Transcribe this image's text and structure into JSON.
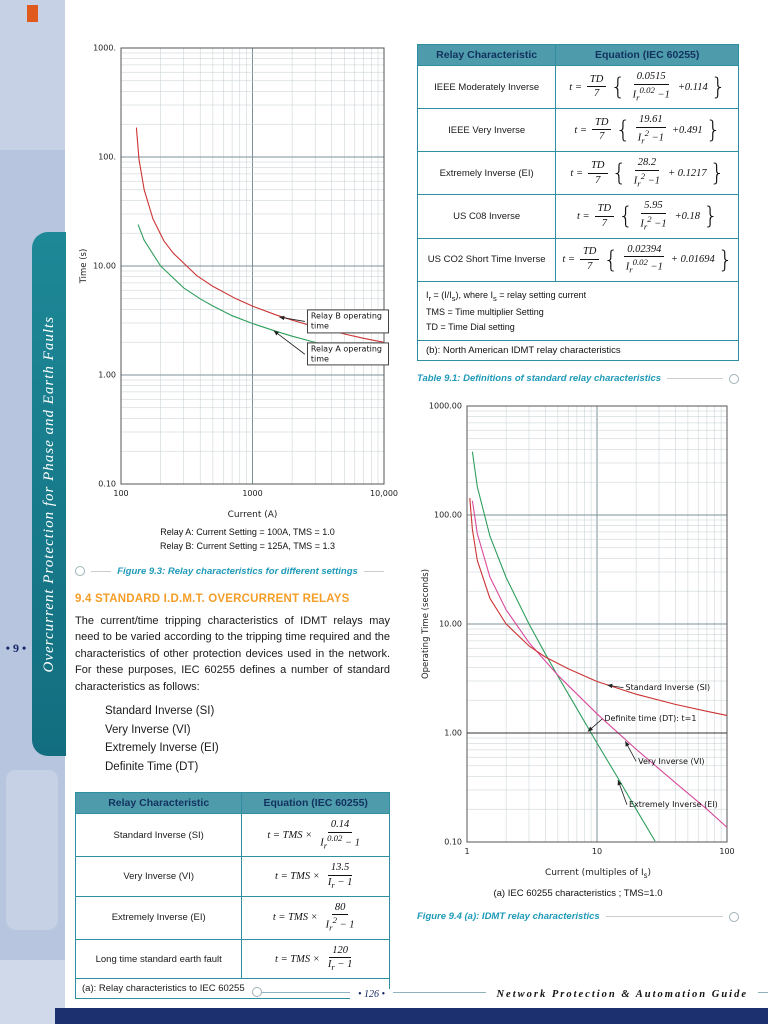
{
  "sidebar": {
    "chapter_title": "Overcurrent Protection for Phase and Earth Faults",
    "chapter_number": "• 9 •"
  },
  "section": {
    "heading": "9.4 STANDARD I.D.M.T. OVERCURRENT RELAYS",
    "paragraph": "The current/time tripping characteristics of IDMT relays may need to be varied according to the tripping time required and the characteristics of other protection devices used in the network. For these purposes, IEC 60255 defines a number of standard characteristics as follows:",
    "list": [
      "Standard Inverse (SI)",
      "Very Inverse (VI)",
      "Extremely Inverse (EI)",
      "Definite Time (DT)"
    ]
  },
  "iec_table": {
    "headers": [
      "Relay Characteristic",
      "Equation (IEC 60255)"
    ],
    "rows": [
      {
        "label": "Standard Inverse (SI)",
        "eq": [
          {
            "t": "txt",
            "v": "t = TMS ×"
          },
          {
            "t": "frac",
            "num": "0.14",
            "den": "I~r~^0.02^ − 1"
          }
        ]
      },
      {
        "label": "Very Inverse (VI)",
        "eq": [
          {
            "t": "txt",
            "v": "t = TMS ×"
          },
          {
            "t": "frac",
            "num": "13.5",
            "den": "I~r~ − 1"
          }
        ]
      },
      {
        "label": "Extremely Inverse (EI)",
        "eq": [
          {
            "t": "txt",
            "v": "t = TMS ×"
          },
          {
            "t": "frac",
            "num": "80",
            "den": "I~r~^2^ − 1"
          }
        ]
      },
      {
        "label": "Long time standard earth fault",
        "eq": [
          {
            "t": "txt",
            "v": "t = TMS ×"
          },
          {
            "t": "frac",
            "num": "120",
            "den": "I~r~ − 1"
          }
        ]
      }
    ],
    "footer": "(a): Relay characteristics to IEC 60255"
  },
  "na_table": {
    "headers": [
      "Relay Characteristic",
      "Equation (IEC 60255)"
    ],
    "rows": [
      {
        "label": "IEEE Moderately Inverse",
        "eq": [
          {
            "t": "txt",
            "v": "t ="
          },
          {
            "t": "frac",
            "num": "TD",
            "den": "7"
          },
          {
            "t": "brace",
            "v": "{"
          },
          {
            "t": "frac",
            "num": "0.0515",
            "den": "I~r~^0.02^ −1"
          },
          {
            "t": "txt",
            "v": "+0.114"
          },
          {
            "t": "brace",
            "v": "}"
          }
        ]
      },
      {
        "label": "IEEE Very Inverse",
        "eq": [
          {
            "t": "txt",
            "v": "t ="
          },
          {
            "t": "frac",
            "num": "TD",
            "den": "7"
          },
          {
            "t": "brace",
            "v": "{"
          },
          {
            "t": "frac",
            "num": "19.61",
            "den": "I~r~^2^ −1"
          },
          {
            "t": "txt",
            "v": "+0.491"
          },
          {
            "t": "brace",
            "v": "}"
          }
        ]
      },
      {
        "label": "Extremely Inverse (EI)",
        "eq": [
          {
            "t": "txt",
            "v": "t ="
          },
          {
            "t": "frac",
            "num": "TD",
            "den": "7"
          },
          {
            "t": "brace",
            "v": "{"
          },
          {
            "t": "frac",
            "num": "28.2",
            "den": "I~r~^2^ −1"
          },
          {
            "t": "txt",
            "v": "+ 0.1217"
          },
          {
            "t": "brace",
            "v": "}"
          }
        ]
      },
      {
        "label": "US C08 Inverse",
        "eq": [
          {
            "t": "txt",
            "v": "t ="
          },
          {
            "t": "frac",
            "num": "TD",
            "den": "7"
          },
          {
            "t": "brace",
            "v": "{"
          },
          {
            "t": "frac",
            "num": "5.95",
            "den": "I~r~^2^ −1"
          },
          {
            "t": "txt",
            "v": "+0.18"
          },
          {
            "t": "brace",
            "v": "}"
          }
        ]
      },
      {
        "label": "US CO2 Short Time Inverse",
        "eq": [
          {
            "t": "txt",
            "v": "t ="
          },
          {
            "t": "frac",
            "num": "TD",
            "den": "7"
          },
          {
            "t": "brace",
            "v": "{"
          },
          {
            "t": "frac",
            "num": "0.02394",
            "den": "I~r~^0.02^ −1"
          },
          {
            "t": "txt",
            "v": "+ 0.01694"
          },
          {
            "t": "brace",
            "v": "}"
          }
        ]
      }
    ],
    "notes": [
      "I~r~ = (I/I~s~), where I~s~ = relay setting current",
      "TMS = Time multiplier Setting",
      "TD = Time Dial setting"
    ],
    "caption_b": "(b): North American IDMT relay characteristics"
  },
  "table_caption": "Table 9.1: Definitions of standard relay characteristics",
  "fig93": {
    "legend": [
      "Relay A: Current Setting = 100A, TMS = 1.0",
      "Relay B: Current Setting = 125A, TMS = 1.3"
    ],
    "caption": "Figure 9.3: Relay characteristics for different settings"
  },
  "fig94": {
    "subcaption": "(a)  IEC 60255 characteristics ; TMS=1.0",
    "caption": "Figure 9.4 (a):  IDMT relay characteristics"
  },
  "footer": {
    "page_number": "• 126 •",
    "book_title": "Network Protection & Automation Guide"
  },
  "chart_data": [
    {
      "type": "line",
      "title": "Relay characteristics for different settings",
      "xlabel": "Current (A)",
      "ylabel": "Time (s)",
      "xscale": "log",
      "yscale": "log",
      "xlim": [
        100,
        10000
      ],
      "ylim": [
        0.1,
        1000
      ],
      "grid": "log-log graph paper",
      "legend_position": "below",
      "xticks": [
        {
          "v": 100,
          "label": "100"
        },
        {
          "v": 1000,
          "label": "1000"
        },
        {
          "v": 10000,
          "label": "10,000"
        }
      ],
      "yticks": [
        {
          "v": 1000,
          "label": "1000."
        },
        {
          "v": 100,
          "label": "100."
        },
        {
          "v": 10,
          "label": "10.00"
        },
        {
          "v": 1,
          "label": "1.00"
        },
        {
          "v": 0.1,
          "label": "0.10"
        }
      ],
      "series": [
        {
          "name": "Relay B (125A, TMS 1.3)",
          "color": "#cc3333",
          "points": [
            [
              131,
              186
            ],
            [
              137,
              95
            ],
            [
              150,
              50
            ],
            [
              175,
              27
            ],
            [
              212,
              17
            ],
            [
              250,
              13.1
            ],
            [
              375,
              8.2
            ],
            [
              500,
              6.5
            ],
            [
              750,
              5.0
            ],
            [
              1000,
              4.29
            ],
            [
              1500,
              3.57
            ],
            [
              2000,
              3.19
            ],
            [
              3000,
              2.77
            ],
            [
              5000,
              2.38
            ],
            [
              7000,
              2.17
            ],
            [
              10000,
              1.99
            ]
          ]
        },
        {
          "name": "Relay A (100A, TMS 1.0)",
          "color": "#2f9e5c",
          "points": [
            [
              135,
              24
            ],
            [
              150,
              17.2
            ],
            [
              200,
              10.0
            ],
            [
              300,
              6.3
            ],
            [
              400,
              5.0
            ],
            [
              500,
              4.3
            ],
            [
              700,
              3.5
            ],
            [
              1000,
              2.97
            ],
            [
              1500,
              2.52
            ],
            [
              2000,
              2.27
            ],
            [
              3000,
              1.99
            ],
            [
              5000,
              1.72
            ],
            [
              7000,
              1.58
            ],
            [
              10000,
              1.45
            ]
          ]
        }
      ],
      "annotations": [
        {
          "text": "Relay B operating time",
          "tx": 2500,
          "ty": 3.1,
          "ax": 1600,
          "ay": 3.4,
          "box": true
        },
        {
          "text": "Relay A operating time",
          "tx": 2500,
          "ty": 1.55,
          "ax": 1450,
          "ay": 2.55,
          "box": true
        }
      ]
    },
    {
      "type": "line",
      "title": "IDMT relay characteristics",
      "xlabel": "Current (multiples of I~s~)",
      "ylabel": "Operating Time (seconds)",
      "xscale": "log",
      "yscale": "log",
      "xlim": [
        1,
        100
      ],
      "ylim": [
        0.1,
        1000
      ],
      "grid": "log-log graph paper",
      "xticks": [
        {
          "v": 1,
          "label": "1"
        },
        {
          "v": 10,
          "label": "10"
        },
        {
          "v": 100,
          "label": "100"
        }
      ],
      "yticks": [
        {
          "v": 1000,
          "label": "1000.00"
        },
        {
          "v": 100,
          "label": "100.00"
        },
        {
          "v": 10,
          "label": "10.00"
        },
        {
          "v": 1,
          "label": "1.00"
        },
        {
          "v": 0.1,
          "label": "0.10"
        }
      ],
      "series": [
        {
          "name": "Extremely Inverse (EI)",
          "color": "#2f9e5c",
          "points": [
            [
              1.1,
              381
            ],
            [
              1.2,
              182
            ],
            [
              1.5,
              64
            ],
            [
              2,
              26.7
            ],
            [
              3,
              10
            ],
            [
              4,
              5.33
            ],
            [
              5,
              3.33
            ],
            [
              7,
              1.67
            ],
            [
              10,
              0.81
            ],
            [
              15,
              0.36
            ],
            [
              20,
              0.2
            ],
            [
              28,
              0.102
            ]
          ]
        },
        {
          "name": "Very Inverse (VI)",
          "color": "#d84a9b",
          "points": [
            [
              1.1,
              135
            ],
            [
              1.2,
              67.5
            ],
            [
              1.5,
              27
            ],
            [
              2,
              13.5
            ],
            [
              3,
              6.75
            ],
            [
              5,
              3.38
            ],
            [
              10,
              1.5
            ],
            [
              20,
              0.71
            ],
            [
              40,
              0.35
            ],
            [
              70,
              0.2
            ],
            [
              100,
              0.136
            ]
          ]
        },
        {
          "name": "Standard Inverse (SI)",
          "color": "#cc3333",
          "points": [
            [
              1.05,
              143
            ],
            [
              1.1,
              73.4
            ],
            [
              1.2,
              38.3
            ],
            [
              1.5,
              17.2
            ],
            [
              2,
              10.0
            ],
            [
              3,
              6.3
            ],
            [
              4,
              4.98
            ],
            [
              6,
              3.88
            ],
            [
              10,
              2.97
            ],
            [
              20,
              2.27
            ],
            [
              40,
              1.83
            ],
            [
              70,
              1.58
            ],
            [
              100,
              1.45
            ]
          ]
        },
        {
          "name": "Definite Time (DT) t=1",
          "color": "#333333",
          "points": [
            [
              1,
              1
            ],
            [
              100,
              1
            ]
          ]
        }
      ],
      "annotations": [
        {
          "text": "Standard Inverse (SI)",
          "tx": 16,
          "ty": 2.6,
          "ax": 12,
          "ay": 2.75,
          "box": false
        },
        {
          "text": "Definite time (DT): t=1",
          "tx": 11,
          "ty": 1.35,
          "ax": 8.5,
          "ay": 1.03,
          "box": false
        },
        {
          "text": "Very Inverse (VI)",
          "tx": 20,
          "ty": 0.55,
          "ax": 16.5,
          "ay": 0.84,
          "box": false
        },
        {
          "text": "Extremely Inverse (EI)",
          "tx": 17,
          "ty": 0.22,
          "ax": 14.5,
          "ay": 0.37,
          "box": false
        }
      ]
    }
  ]
}
